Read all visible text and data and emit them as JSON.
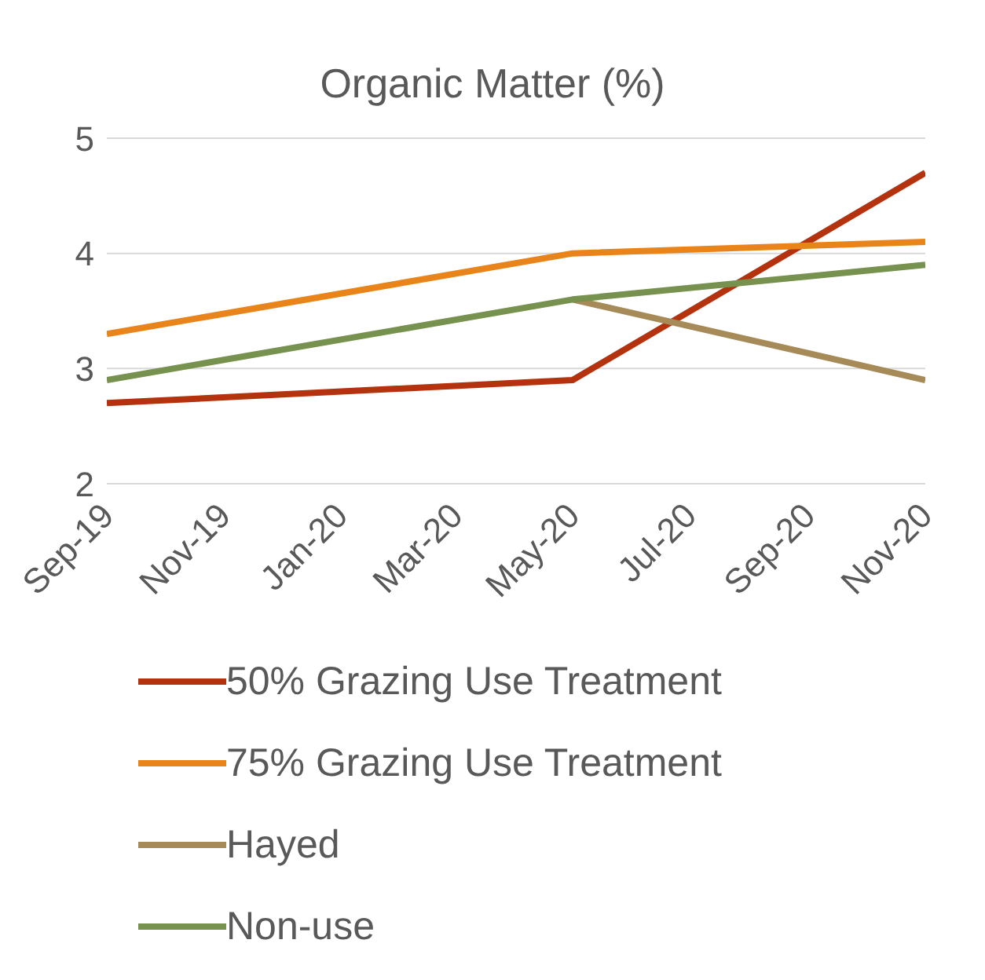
{
  "chart_data": {
    "type": "line",
    "title": "Organic Matter (%)",
    "x": [
      "2019-09",
      "2020-05",
      "2020-11"
    ],
    "series": [
      {
        "name": "50% Grazing Use Treatment",
        "color": "#b5320f",
        "values": [
          2.7,
          2.9,
          4.7
        ]
      },
      {
        "name": "75% Grazing Use Treatment",
        "color": "#e8841a",
        "values": [
          3.3,
          4.0,
          4.1
        ]
      },
      {
        "name": "Hayed",
        "color": "#a68a58",
        "values": [
          null,
          3.6,
          2.9
        ]
      },
      {
        "name": "Non-use",
        "color": "#77914f",
        "values": [
          2.9,
          3.6,
          3.9
        ]
      }
    ],
    "xlim": [
      "2019-09",
      "2020-11"
    ],
    "xticks": [
      {
        "value": "2019-09",
        "label": "Sep-19"
      },
      {
        "value": "2019-11",
        "label": "Nov-19"
      },
      {
        "value": "2020-01",
        "label": "Jan-20"
      },
      {
        "value": "2020-03",
        "label": "Mar-20"
      },
      {
        "value": "2020-05",
        "label": "May-20"
      },
      {
        "value": "2020-07",
        "label": "Jul-20"
      },
      {
        "value": "2020-09",
        "label": "Sep-20"
      },
      {
        "value": "2020-11",
        "label": "Nov-20"
      }
    ],
    "ylim": [
      2,
      5
    ],
    "yticks": [
      2,
      3,
      4,
      5
    ],
    "grid": "y",
    "legend": "bottom",
    "marker": "none",
    "line_style": "solid"
  }
}
